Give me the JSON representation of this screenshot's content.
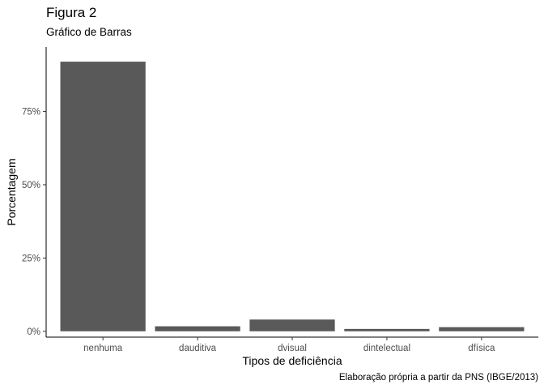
{
  "chart_data": {
    "type": "bar",
    "title": "Figura 2",
    "subtitle": "Gráfico de Barras",
    "caption": "Elaboração própria a partir da PNS (IBGE/2013)",
    "xlabel": "Tipos de deficiência",
    "ylabel": "Porcentagem",
    "categories": [
      "nenhuma",
      "dauditiva",
      "dvisual",
      "dintelectual",
      "dfísica"
    ],
    "values": [
      0.92,
      0.017,
      0.04,
      0.008,
      0.014
    ],
    "ylim": [
      -0.02,
      0.97
    ],
    "y_ticks": [
      0,
      0.25,
      0.5,
      0.75
    ],
    "y_tick_labels": [
      "0%",
      "25%",
      "50%",
      "75%"
    ],
    "bar_color": "#595959",
    "grid": false,
    "legend": "none"
  }
}
